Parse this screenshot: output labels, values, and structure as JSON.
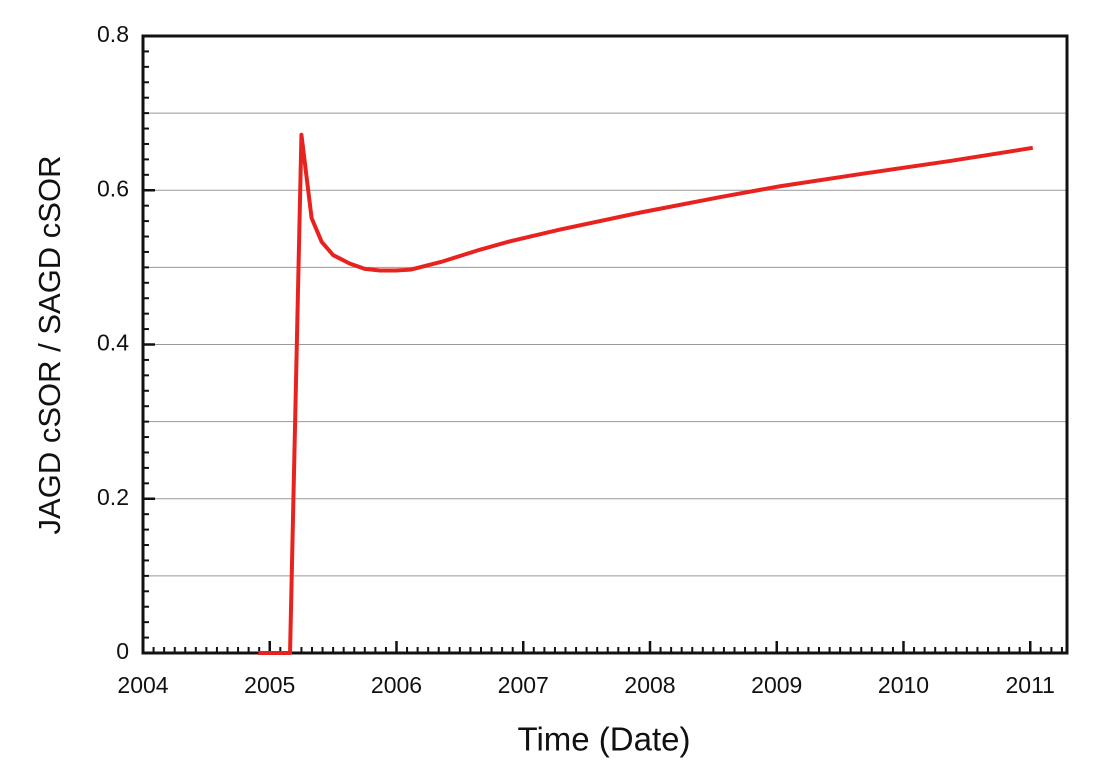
{
  "chart_data": {
    "type": "line",
    "x_label": "Time (Date)",
    "y_label": "JAGD cSOR / SAGD cSOR",
    "series": [
      {
        "color": "#e8231f",
        "x": [
          2004.91,
          2005.16,
          2005.25,
          2005.33,
          2005.41,
          2005.5,
          2005.63,
          2005.75,
          2005.87,
          2005.99,
          2006.11,
          2006.35,
          2006.66,
          2006.9,
          2007.29,
          2007.92,
          2008.55,
          2009.02,
          2009.66,
          2010.37,
          2011.02
        ],
        "values": [
          0,
          0,
          0.672,
          0.564,
          0.533,
          0.516,
          0.505,
          0.498,
          0.496,
          0.496,
          0.497,
          0.507,
          0.523,
          0.534,
          0.549,
          0.571,
          0.591,
          0.605,
          0.621,
          0.638,
          0.655
        ]
      }
    ],
    "xlim": [
      2004,
      2011.29
    ],
    "xticks": [
      2004,
      2005,
      2006,
      2007,
      2008,
      2009,
      2010,
      2011
    ],
    "ylim": [
      0,
      0.8
    ],
    "yticks": [
      0,
      0.2,
      0.4,
      0.6,
      0.8
    ],
    "ygrid": [
      0.1,
      0.2,
      0.3,
      0.4,
      0.5,
      0.6,
      0.7
    ],
    "grid": true
  }
}
